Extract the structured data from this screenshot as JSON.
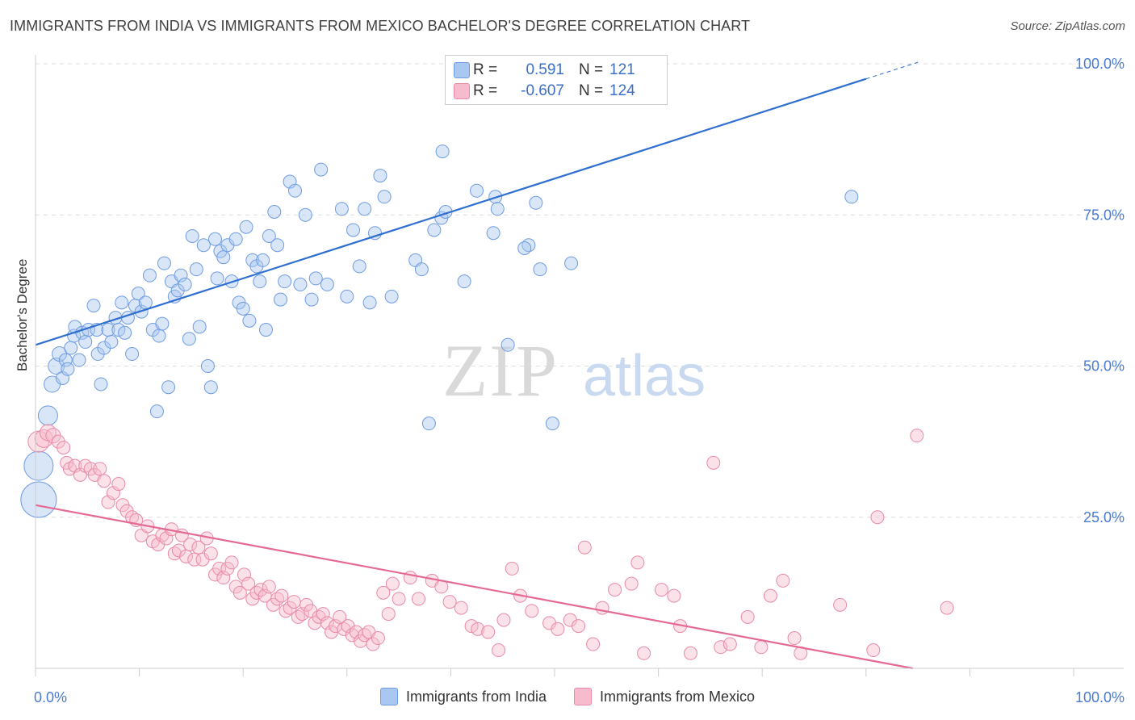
{
  "title": "IMMIGRANTS FROM INDIA VS IMMIGRANTS FROM MEXICO BACHELOR'S DEGREE CORRELATION CHART",
  "source": "Source: ZipAtlas.com",
  "watermark": {
    "zip": "ZIP",
    "atlas": "atlas"
  },
  "stats": [
    {
      "r_label": "R =",
      "r_value": "0.591",
      "n_label": "N =",
      "n_value": "121",
      "color": "#a9c7f0",
      "border": "#6f9ce0"
    },
    {
      "r_label": "R =",
      "r_value": "-0.607",
      "n_label": "N =",
      "n_value": "124",
      "color": "#f6bccd",
      "border": "#e88aa8"
    }
  ],
  "chart_data": {
    "type": "scatter",
    "title": "IMMIGRANTS FROM INDIA VS IMMIGRANTS FROM MEXICO BACHELOR'S DEGREE CORRELATION CHART",
    "xlabel": "",
    "ylabel": "Bachelor's Degree",
    "xlim": [
      0,
      100
    ],
    "ylim": [
      0,
      100
    ],
    "x_tick_labels": [
      {
        "value": 0,
        "label": "0.0%"
      },
      {
        "value": 100,
        "label": "100.0%"
      }
    ],
    "y_tick_labels": [
      {
        "value": 25,
        "label": "25.0%"
      },
      {
        "value": 50,
        "label": "50.0%"
      },
      {
        "value": 75,
        "label": "75.0%"
      },
      {
        "value": 100,
        "label": "100.0%"
      }
    ],
    "grid": true,
    "series": [
      {
        "name": "Immigrants from India",
        "color": "#6f9ce0",
        "fill": "#a9c7f0",
        "trend": {
          "x0": 0,
          "y0": 53.5,
          "x1": 80,
          "y1": 97.5,
          "dashed_to_x": 85
        },
        "points": [
          [
            0.3,
            27.9,
            22
          ],
          [
            0.3,
            33.5,
            18
          ],
          [
            1.2,
            41.8,
            12
          ],
          [
            1.6,
            47,
            10
          ],
          [
            2.0,
            50,
            10
          ],
          [
            2.3,
            52,
            9
          ],
          [
            2.6,
            48,
            8
          ],
          [
            2.9,
            51,
            8
          ],
          [
            3.1,
            49.5,
            8
          ],
          [
            3.4,
            53,
            8
          ],
          [
            3.7,
            55,
            8
          ],
          [
            3.8,
            56.5,
            8
          ],
          [
            4.2,
            51,
            8
          ],
          [
            4.5,
            55.5,
            8
          ],
          [
            4.8,
            54,
            8
          ],
          [
            5.1,
            56,
            8
          ],
          [
            5.6,
            60,
            8
          ],
          [
            5.9,
            56,
            8
          ],
          [
            6.0,
            52,
            8
          ],
          [
            6.3,
            47,
            8
          ],
          [
            6.6,
            53,
            8
          ],
          [
            7.0,
            56,
            8
          ],
          [
            7.3,
            54,
            8
          ],
          [
            7.7,
            58,
            8
          ],
          [
            8.0,
            56,
            8
          ],
          [
            8.3,
            60.5,
            8
          ],
          [
            8.6,
            55.5,
            8
          ],
          [
            8.9,
            58,
            8
          ],
          [
            9.3,
            52,
            8
          ],
          [
            9.6,
            60,
            8
          ],
          [
            9.9,
            62,
            8
          ],
          [
            10.2,
            59,
            8
          ],
          [
            10.6,
            60.5,
            8
          ],
          [
            11.0,
            65,
            8
          ],
          [
            11.3,
            56,
            8
          ],
          [
            11.7,
            42.5,
            8
          ],
          [
            11.9,
            55,
            8
          ],
          [
            12.2,
            57,
            8
          ],
          [
            12.4,
            67,
            8
          ],
          [
            12.8,
            46.5,
            8
          ],
          [
            13.1,
            64,
            8
          ],
          [
            13.4,
            61.5,
            8
          ],
          [
            13.7,
            62.5,
            8
          ],
          [
            14.0,
            65,
            8
          ],
          [
            14.4,
            63.5,
            8
          ],
          [
            14.8,
            54.5,
            8
          ],
          [
            15.1,
            71.5,
            8
          ],
          [
            15.5,
            66,
            8
          ],
          [
            15.8,
            56.5,
            8
          ],
          [
            16.2,
            70,
            8
          ],
          [
            16.6,
            50,
            8
          ],
          [
            16.9,
            46.5,
            8
          ],
          [
            17.3,
            71,
            8
          ],
          [
            17.5,
            64.5,
            8
          ],
          [
            17.8,
            69,
            8
          ],
          [
            18.1,
            68,
            8
          ],
          [
            18.5,
            70,
            8
          ],
          [
            18.9,
            64,
            8
          ],
          [
            19.3,
            71,
            8
          ],
          [
            19.6,
            60.5,
            8
          ],
          [
            20.0,
            59.5,
            8
          ],
          [
            20.3,
            73,
            8
          ],
          [
            20.6,
            57.5,
            8
          ],
          [
            20.9,
            67.5,
            8
          ],
          [
            21.3,
            66.5,
            8
          ],
          [
            21.6,
            64,
            8
          ],
          [
            21.9,
            67.5,
            8
          ],
          [
            22.2,
            56,
            8
          ],
          [
            22.5,
            71.5,
            8
          ],
          [
            23.0,
            75.5,
            8
          ],
          [
            23.3,
            70,
            8
          ],
          [
            23.6,
            61,
            8
          ],
          [
            24.0,
            64,
            8
          ],
          [
            24.5,
            80.5,
            8
          ],
          [
            25.0,
            79,
            8
          ],
          [
            25.5,
            63.5,
            8
          ],
          [
            26.0,
            75,
            8
          ],
          [
            26.6,
            61,
            8
          ],
          [
            27.0,
            64.5,
            8
          ],
          [
            27.5,
            82.5,
            8
          ],
          [
            28.1,
            63.5,
            8
          ],
          [
            29.5,
            76,
            8
          ],
          [
            30.0,
            61.5,
            8
          ],
          [
            30.6,
            72.5,
            8
          ],
          [
            31.2,
            66.5,
            8
          ],
          [
            31.7,
            76,
            8
          ],
          [
            32.2,
            60.5,
            8
          ],
          [
            32.7,
            72,
            8
          ],
          [
            33.2,
            81.5,
            8
          ],
          [
            33.6,
            78,
            8
          ],
          [
            34.3,
            61.5,
            8
          ],
          [
            36.6,
            67.5,
            8
          ],
          [
            37.2,
            66,
            8
          ],
          [
            37.9,
            40.5,
            8
          ],
          [
            38.4,
            72.5,
            8
          ],
          [
            39.1,
            74.5,
            8
          ],
          [
            39.5,
            75.5,
            8
          ],
          [
            39.2,
            85.5,
            8
          ],
          [
            41.3,
            64,
            8
          ],
          [
            42.5,
            79,
            8
          ],
          [
            44.1,
            72,
            8
          ],
          [
            44.3,
            78,
            8
          ],
          [
            44.5,
            76,
            8
          ],
          [
            45.5,
            53.5,
            8
          ],
          [
            47.5,
            70,
            8
          ],
          [
            47.1,
            69.5,
            8
          ],
          [
            48.2,
            77,
            8
          ],
          [
            48.6,
            66,
            8
          ],
          [
            49.8,
            40.5,
            8
          ],
          [
            51.6,
            67,
            8
          ],
          [
            78.6,
            78,
            8
          ]
        ]
      },
      {
        "name": "Immigrants from Mexico",
        "color": "#e88aa8",
        "fill": "#f6bccd",
        "trend": {
          "x0": 0,
          "y0": 27,
          "x1": 84.5,
          "y1": 0
        },
        "points": [
          [
            0.3,
            37.5,
            13
          ],
          [
            0.8,
            38,
            11
          ],
          [
            1.2,
            39,
            10
          ],
          [
            1.7,
            38.5,
            9
          ],
          [
            2.2,
            37.5,
            8
          ],
          [
            2.7,
            36.5,
            8
          ],
          [
            3.0,
            34,
            8
          ],
          [
            3.3,
            33,
            8
          ],
          [
            3.8,
            33.5,
            8
          ],
          [
            4.3,
            32,
            8
          ],
          [
            4.8,
            33.5,
            8
          ],
          [
            5.3,
            33,
            8
          ],
          [
            5.7,
            32,
            8
          ],
          [
            6.2,
            33,
            8
          ],
          [
            6.6,
            31,
            8
          ],
          [
            7.0,
            27.5,
            8
          ],
          [
            7.5,
            29,
            8
          ],
          [
            8.0,
            30.5,
            8
          ],
          [
            8.4,
            27,
            8
          ],
          [
            8.8,
            26,
            8
          ],
          [
            9.3,
            25,
            8
          ],
          [
            9.7,
            24.5,
            8
          ],
          [
            10.2,
            22,
            8
          ],
          [
            10.8,
            23.5,
            8
          ],
          [
            11.3,
            21,
            8
          ],
          [
            11.8,
            20.5,
            8
          ],
          [
            12.2,
            22,
            8
          ],
          [
            12.6,
            21.5,
            8
          ],
          [
            13.1,
            23,
            8
          ],
          [
            13.4,
            19,
            8
          ],
          [
            13.8,
            19.5,
            8
          ],
          [
            14.1,
            22,
            8
          ],
          [
            14.5,
            18.5,
            8
          ],
          [
            14.9,
            20.5,
            8
          ],
          [
            15.3,
            18,
            8
          ],
          [
            15.7,
            20,
            8
          ],
          [
            16.1,
            18,
            8
          ],
          [
            16.5,
            21.5,
            8
          ],
          [
            16.9,
            19,
            8
          ],
          [
            17.3,
            15.5,
            8
          ],
          [
            17.7,
            16.5,
            8
          ],
          [
            18.1,
            15,
            8
          ],
          [
            18.5,
            16.5,
            8
          ],
          [
            18.9,
            17.5,
            8
          ],
          [
            19.3,
            13.5,
            8
          ],
          [
            19.7,
            12.5,
            8
          ],
          [
            20.1,
            15.5,
            8
          ],
          [
            20.5,
            14,
            8
          ],
          [
            20.9,
            11.5,
            8
          ],
          [
            21.3,
            12.5,
            8
          ],
          [
            21.7,
            13,
            8
          ],
          [
            22.1,
            12,
            8
          ],
          [
            22.5,
            13.5,
            8
          ],
          [
            22.9,
            10.5,
            8
          ],
          [
            23.3,
            11.5,
            8
          ],
          [
            23.7,
            12,
            8
          ],
          [
            24.1,
            9.5,
            8
          ],
          [
            24.5,
            10,
            8
          ],
          [
            24.9,
            11,
            8
          ],
          [
            25.3,
            8.5,
            8
          ],
          [
            25.7,
            9,
            8
          ],
          [
            26.1,
            10.5,
            8
          ],
          [
            26.5,
            9.5,
            8
          ],
          [
            26.9,
            7.5,
            8
          ],
          [
            27.3,
            8.5,
            8
          ],
          [
            27.7,
            9,
            8
          ],
          [
            28.1,
            7.5,
            8
          ],
          [
            28.5,
            6,
            8
          ],
          [
            28.9,
            7,
            8
          ],
          [
            29.3,
            8.5,
            8
          ],
          [
            29.7,
            6.5,
            8
          ],
          [
            30.1,
            7,
            8
          ],
          [
            30.5,
            5.5,
            8
          ],
          [
            30.9,
            6,
            8
          ],
          [
            31.3,
            4.5,
            8
          ],
          [
            31.7,
            5.5,
            8
          ],
          [
            32.1,
            6,
            8
          ],
          [
            32.5,
            4,
            8
          ],
          [
            33.0,
            5,
            8
          ],
          [
            33.5,
            12.5,
            8
          ],
          [
            34.0,
            9,
            8
          ],
          [
            34.4,
            14,
            8
          ],
          [
            35.0,
            11.5,
            8
          ],
          [
            36.1,
            15,
            8
          ],
          [
            36.9,
            11.5,
            8
          ],
          [
            38.2,
            14.5,
            8
          ],
          [
            39.1,
            13.5,
            8
          ],
          [
            39.9,
            11,
            8
          ],
          [
            41.0,
            10,
            8
          ],
          [
            42.0,
            7,
            8
          ],
          [
            42.6,
            6.5,
            8
          ],
          [
            43.6,
            6,
            8
          ],
          [
            44.6,
            3,
            8
          ],
          [
            45.1,
            8,
            8
          ],
          [
            45.9,
            16.5,
            8
          ],
          [
            46.7,
            12,
            8
          ],
          [
            47.8,
            9.5,
            8
          ],
          [
            49.5,
            7.5,
            8
          ],
          [
            50.3,
            6.5,
            8
          ],
          [
            51.5,
            8,
            8
          ],
          [
            52.3,
            7,
            8
          ],
          [
            52.9,
            20,
            8
          ],
          [
            53.7,
            4,
            8
          ],
          [
            54.6,
            10,
            8
          ],
          [
            55.8,
            13,
            8
          ],
          [
            57.4,
            14,
            8
          ],
          [
            58.6,
            2.5,
            8
          ],
          [
            58.0,
            17.5,
            8
          ],
          [
            60.3,
            13,
            8
          ],
          [
            61.5,
            12,
            8
          ],
          [
            62.1,
            7,
            8
          ],
          [
            63.1,
            2.5,
            8
          ],
          [
            65.3,
            34,
            8
          ],
          [
            66.0,
            3.5,
            8
          ],
          [
            66.9,
            4,
            8
          ],
          [
            68.6,
            8.5,
            8
          ],
          [
            69.9,
            3.5,
            8
          ],
          [
            70.8,
            12,
            8
          ],
          [
            72.0,
            14.5,
            8
          ],
          [
            73.1,
            5,
            8
          ],
          [
            73.7,
            2.5,
            8
          ],
          [
            77.5,
            10.5,
            8
          ],
          [
            80.7,
            3,
            8
          ],
          [
            81.1,
            25,
            8
          ],
          [
            84.9,
            38.5,
            8
          ],
          [
            87.8,
            10,
            8
          ]
        ]
      }
    ]
  },
  "legend": [
    {
      "label": "Immigrants from India",
      "color": "#a9c7f0",
      "border": "#6f9ce0"
    },
    {
      "label": "Immigrants from Mexico",
      "color": "#f6bccd",
      "border": "#e88aa8"
    }
  ]
}
